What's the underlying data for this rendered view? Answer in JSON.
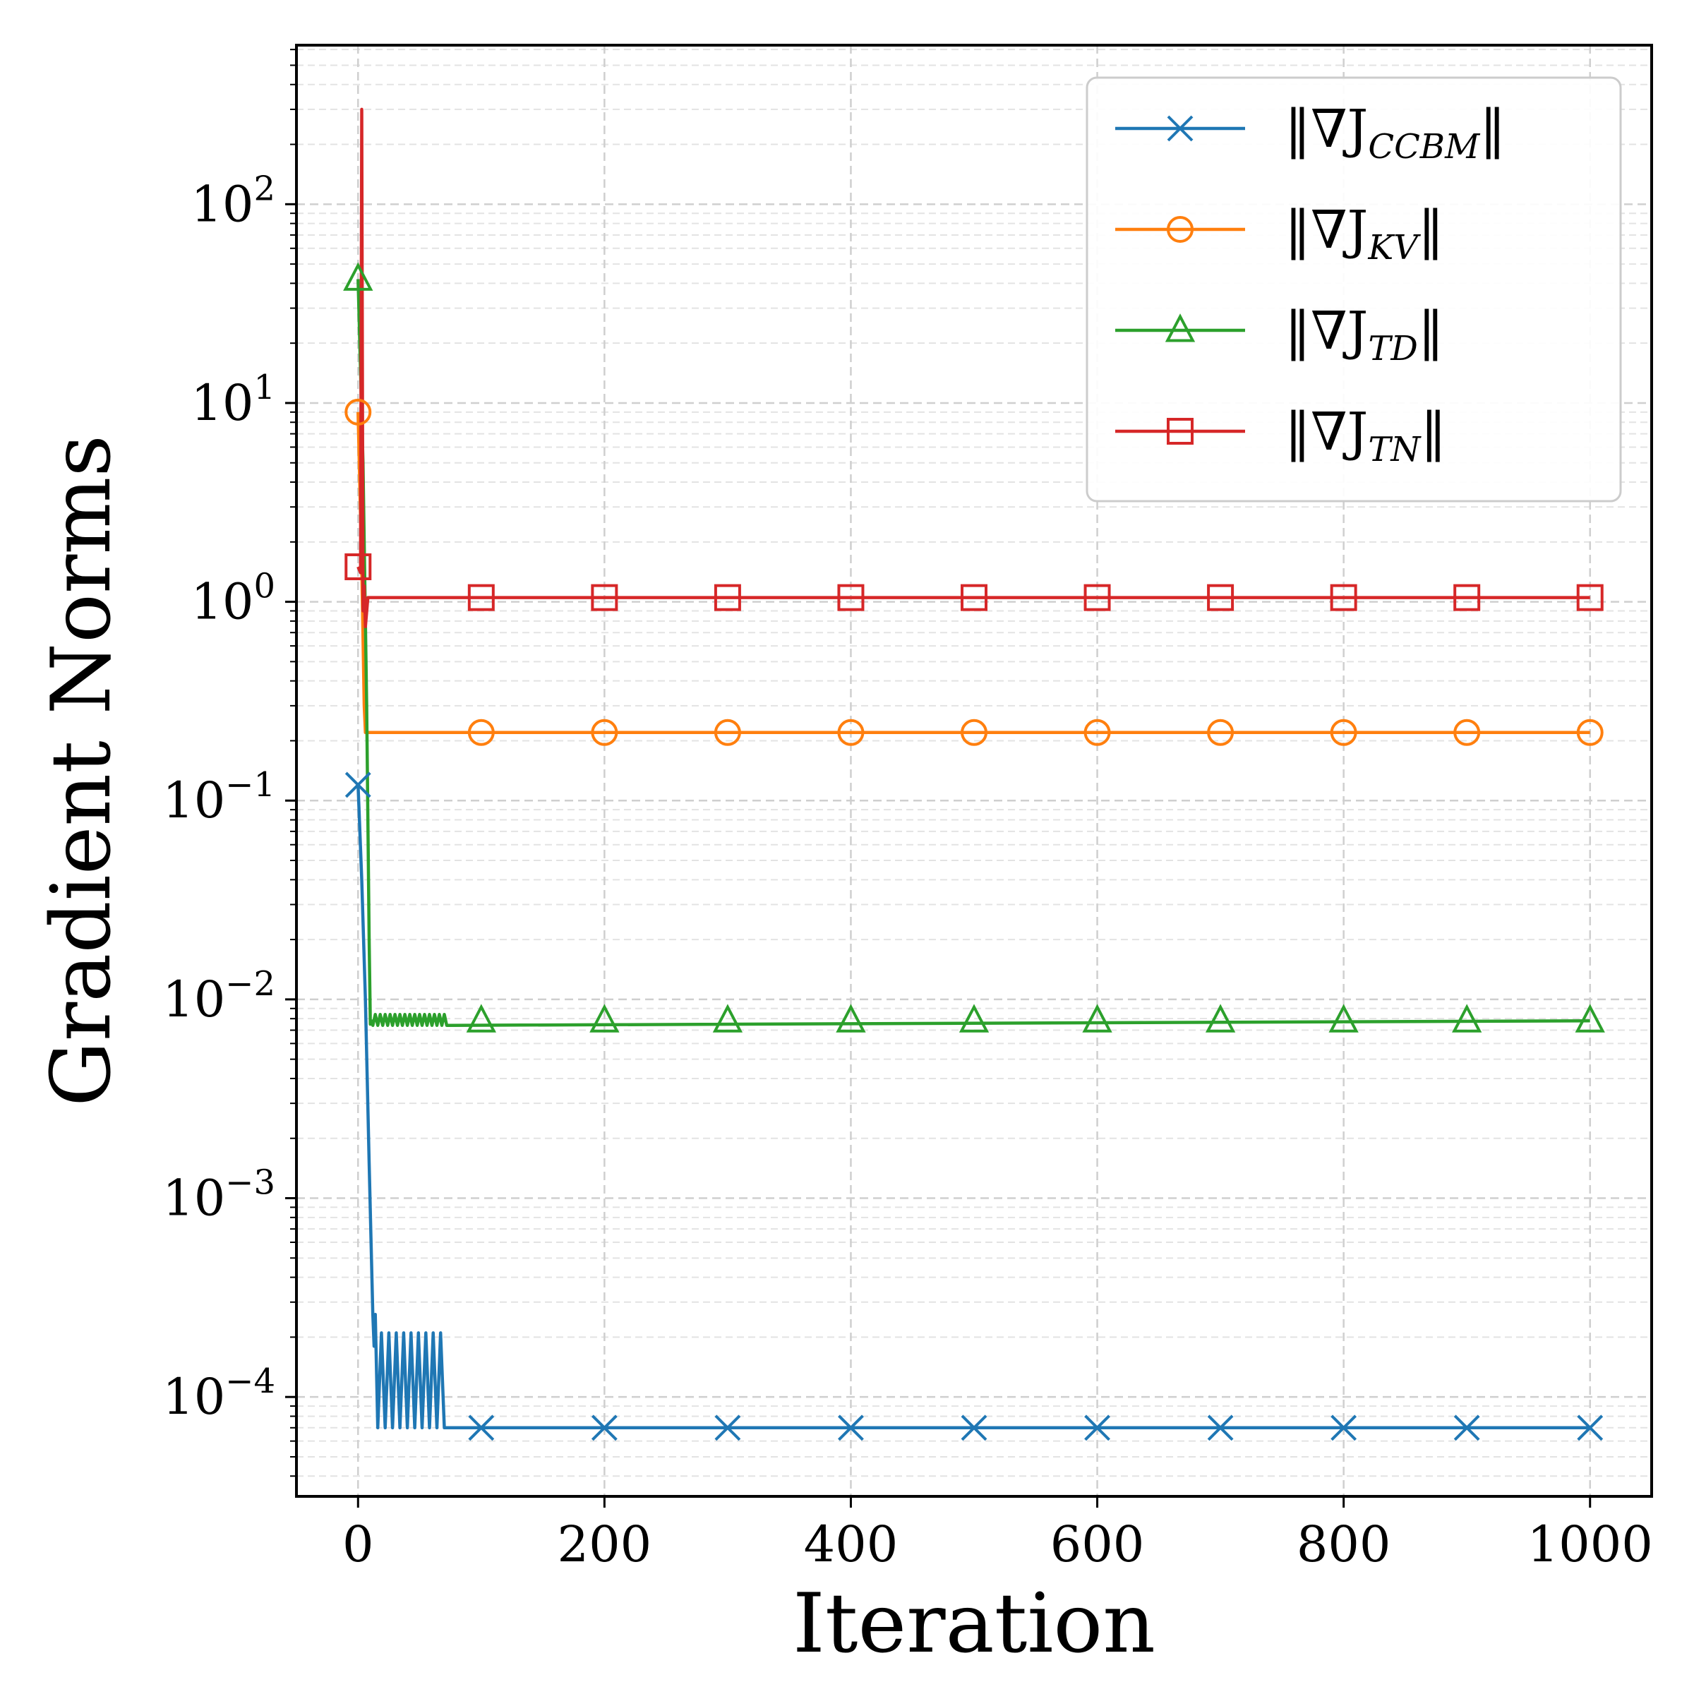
{
  "chart_data": {
    "type": "line",
    "xlabel": "Iteration",
    "ylabel": "Gradient Norms",
    "xlim": [
      -50,
      1050
    ],
    "ylim_log10": [
      -4.5,
      2.8
    ],
    "yscale": "log",
    "grid": true,
    "legend_position": "top-right",
    "x_ticks": [
      0,
      200,
      400,
      600,
      800,
      1000
    ],
    "x_tick_labels": [
      "0",
      "200",
      "400",
      "600",
      "800",
      "1000"
    ],
    "y_ticks": [
      {
        "base": "10",
        "exp": "2",
        "value": 100
      },
      {
        "base": "10",
        "exp": "1",
        "value": 10
      },
      {
        "base": "10",
        "exp": "0",
        "value": 1
      },
      {
        "base": "10",
        "exp": "−1",
        "value": 0.1
      },
      {
        "base": "10",
        "exp": "−2",
        "value": 0.01
      },
      {
        "base": "10",
        "exp": "−3",
        "value": 0.001
      },
      {
        "base": "10",
        "exp": "−4",
        "value": 0.0001
      }
    ],
    "series": [
      {
        "name": "CCBM",
        "legend_main": "‖∇J",
        "legend_sub": "CCBM",
        "legend_close": "‖",
        "color": "#1f77b4",
        "marker": "x",
        "points": [
          [
            0,
            0.12
          ],
          [
            3,
            0.04
          ],
          [
            6,
            0.01
          ],
          [
            9,
            0.0015
          ],
          [
            12,
            0.00026
          ],
          [
            13,
            0.00018
          ],
          [
            14,
            0.00026
          ],
          [
            16,
            7e-05
          ],
          [
            70,
            7e-05
          ],
          [
            100,
            7e-05
          ],
          [
            1000,
            7e-05
          ]
        ],
        "oscillation": {
          "from": 16,
          "to": 70,
          "step": 6,
          "low": 7e-05,
          "high": 0.00021
        },
        "marker_points": [
          [
            0,
            0.12
          ],
          [
            100,
            7e-05
          ],
          [
            200,
            7e-05
          ],
          [
            300,
            7e-05
          ],
          [
            400,
            7e-05
          ],
          [
            500,
            7e-05
          ],
          [
            600,
            7e-05
          ],
          [
            700,
            7e-05
          ],
          [
            800,
            7e-05
          ],
          [
            900,
            7e-05
          ],
          [
            1000,
            7e-05
          ]
        ]
      },
      {
        "name": "KV",
        "legend_main": "‖∇J",
        "legend_sub": "KV",
        "legend_close": "‖",
        "color": "#ff7f0e",
        "marker": "o",
        "points": [
          [
            0,
            9.0
          ],
          [
            3,
            1.5
          ],
          [
            5,
            0.3
          ],
          [
            6,
            0.22
          ],
          [
            1000,
            0.22
          ]
        ],
        "marker_points": [
          [
            0,
            9.0
          ],
          [
            100,
            0.22
          ],
          [
            200,
            0.22
          ],
          [
            300,
            0.22
          ],
          [
            400,
            0.22
          ],
          [
            500,
            0.22
          ],
          [
            600,
            0.22
          ],
          [
            700,
            0.22
          ],
          [
            800,
            0.22
          ],
          [
            900,
            0.22
          ],
          [
            1000,
            0.22
          ]
        ]
      },
      {
        "name": "TD",
        "legend_main": "‖∇J",
        "legend_sub": "TD",
        "legend_close": "‖",
        "color": "#2ca02c",
        "marker": "^",
        "points": [
          [
            0,
            42
          ],
          [
            4,
            5
          ],
          [
            7,
            0.3
          ],
          [
            9,
            0.02
          ],
          [
            10,
            0.0075
          ],
          [
            12,
            0.0078
          ],
          [
            70,
            0.0078
          ],
          [
            1000,
            0.0078
          ]
        ],
        "oscillation": {
          "from": 12,
          "to": 72,
          "step": 4,
          "low": 0.0074,
          "high": 0.0084
        },
        "marker_points": [
          [
            0,
            42
          ],
          [
            100,
            0.0078
          ],
          [
            200,
            0.0078
          ],
          [
            300,
            0.0078
          ],
          [
            400,
            0.0078
          ],
          [
            500,
            0.0078
          ],
          [
            600,
            0.0078
          ],
          [
            700,
            0.0078
          ],
          [
            800,
            0.0078
          ],
          [
            900,
            0.0078
          ],
          [
            1000,
            0.0078
          ]
        ]
      },
      {
        "name": "TN",
        "legend_main": "‖∇J",
        "legend_sub": "TN",
        "legend_close": "‖",
        "color": "#d62728",
        "marker": "s",
        "points": [
          [
            0,
            1.5
          ],
          [
            2,
            1.4
          ],
          [
            3,
            300
          ],
          [
            4,
            0.9
          ],
          [
            5,
            1.2
          ],
          [
            6,
            0.75
          ],
          [
            8,
            1.05
          ],
          [
            1000,
            1.05
          ]
        ],
        "marker_points": [
          [
            0,
            1.5
          ],
          [
            100,
            1.05
          ],
          [
            200,
            1.05
          ],
          [
            300,
            1.05
          ],
          [
            400,
            1.05
          ],
          [
            500,
            1.05
          ],
          [
            600,
            1.05
          ],
          [
            700,
            1.05
          ],
          [
            800,
            1.05
          ],
          [
            900,
            1.05
          ],
          [
            1000,
            1.05
          ]
        ]
      }
    ]
  }
}
